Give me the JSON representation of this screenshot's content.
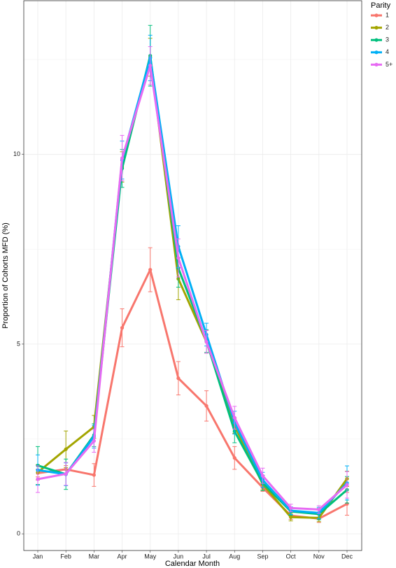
{
  "chart_data": {
    "type": "line",
    "x_label": "Calendar Month",
    "y_label": "Proportion of Cohorts MFD (%)",
    "legend_title": "Parity",
    "legend_position": "right",
    "grid": true,
    "minor_yticks": [
      2.5,
      7.5,
      12.5
    ],
    "categories": [
      "Jan",
      "Feb",
      "Mar",
      "Apr",
      "May",
      "Jun",
      "Jul",
      "Aug",
      "Sep",
      "Oct",
      "Nov",
      "Dec"
    ],
    "ylim": [
      -0.44,
      14.05
    ],
    "yticks": [
      0,
      5,
      10
    ],
    "series": [
      {
        "name": "1",
        "color": "#F8766D",
        "values": [
          1.6,
          1.7,
          1.55,
          5.43,
          6.96,
          4.1,
          3.37,
          2.0,
          1.22,
          0.48,
          0.4,
          0.79
        ],
        "errors": [
          0.1,
          0.1,
          0.3,
          0.5,
          0.58,
          0.44,
          0.4,
          0.3,
          0.1,
          0.1,
          0.1,
          0.3
        ]
      },
      {
        "name": "2",
        "color": "#A3A500",
        "values": [
          1.62,
          2.23,
          2.82,
          9.67,
          12.56,
          6.72,
          5.06,
          2.85,
          1.31,
          0.44,
          0.42,
          1.45
        ],
        "errors": [
          0.2,
          0.48,
          0.3,
          0.4,
          0.5,
          0.55,
          0.3,
          0.2,
          0.15,
          0.1,
          0.1,
          0.2
        ]
      },
      {
        "name": "3",
        "color": "#00BF7D",
        "values": [
          1.8,
          1.57,
          2.6,
          9.63,
          12.6,
          7.0,
          5.08,
          2.7,
          1.34,
          0.59,
          0.52,
          1.16
        ],
        "errors": [
          0.5,
          0.4,
          0.3,
          0.5,
          0.8,
          0.5,
          0.3,
          0.3,
          0.2,
          0.1,
          0.15,
          0.35
        ]
      },
      {
        "name": "4",
        "color": "#00B0F6",
        "values": [
          1.68,
          1.57,
          2.56,
          9.85,
          12.54,
          7.57,
          5.25,
          2.93,
          1.42,
          0.61,
          0.55,
          1.34
        ],
        "errors": [
          0.4,
          0.3,
          0.3,
          0.5,
          0.6,
          0.55,
          0.3,
          0.3,
          0.2,
          0.1,
          0.15,
          0.45
        ]
      },
      {
        "name": "5+",
        "color": "#E76BF3",
        "values": [
          1.44,
          1.58,
          2.45,
          9.9,
          12.34,
          7.27,
          5.06,
          3.06,
          1.53,
          0.68,
          0.64,
          1.29
        ],
        "errors": [
          0.35,
          0.3,
          0.3,
          0.6,
          0.5,
          0.5,
          0.3,
          0.3,
          0.2,
          0.1,
          0.1,
          0.35
        ]
      }
    ]
  }
}
